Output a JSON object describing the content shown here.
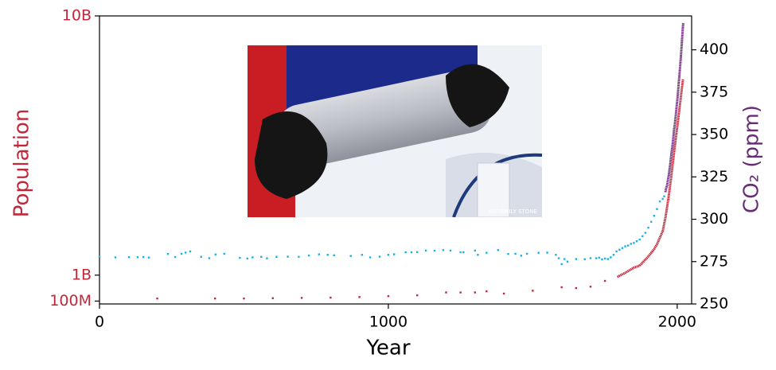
{
  "chart_data": {
    "type": "scatter",
    "x_label": "Year",
    "y_label": "Population",
    "y2_label": "CO₂ (ppm)",
    "inset_credit": "NSF/EMILY STONE",
    "xlim": [
      0,
      2050
    ],
    "xticks": [
      0,
      1000,
      2000
    ],
    "ylim": [
      0,
      10000000000
    ],
    "yticks": [
      {
        "value": 100000000,
        "label": "100M"
      },
      {
        "value": 1000000000,
        "label": "1B"
      },
      {
        "value": 10000000000,
        "label": "10B"
      }
    ],
    "y_color": "#c0283b",
    "y2lim": [
      250,
      420
    ],
    "y2ticks": [
      250,
      275,
      300,
      325,
      350,
      375,
      400
    ],
    "y2_color": "#6b2a78",
    "series": [
      {
        "style": "dots",
        "color": "#c0283b",
        "axis": "y",
        "x": [
          200,
          400,
          500,
          600,
          700,
          800,
          900,
          1000,
          1100,
          1200,
          1250,
          1300,
          1340,
          1400,
          1500,
          1600,
          1650,
          1700,
          1750
        ],
        "values": [
          190000000,
          190000000,
          190000000,
          200000000,
          210000000,
          220000000,
          240000000,
          270000000,
          300000000,
          400000000,
          400000000,
          400000000,
          440000000,
          360000000,
          460000000,
          580000000,
          550000000,
          600000000,
          800000000
        ]
      },
      {
        "style": "line",
        "color": "#c0283b",
        "axis": "y",
        "x": [
          1793,
          1820,
          1850,
          1870,
          1900,
          1920,
          1930,
          1940,
          1950,
          1960,
          1970,
          1980,
          1990,
          2000,
          2010,
          2020
        ],
        "values": [
          940000000,
          1080000000,
          1260000000,
          1330000000,
          1650000000,
          1900000000,
          2070000000,
          2300000000,
          2530000000,
          3030000000,
          3700000000,
          4460000000,
          5330000000,
          6140000000,
          6960000000,
          7800000000
        ]
      },
      {
        "style": "dots",
        "color": "#1ab0e8",
        "axis": "y2",
        "x": [
          0,
          55,
          102,
          132,
          152,
          171,
          237,
          262,
          284,
          298,
          314,
          352,
          380,
          402,
          432,
          486,
          512,
          530,
          560,
          580,
          613,
          652,
          690,
          725,
          760,
          790,
          812,
          870,
          909,
          937,
          970,
          1000,
          1020,
          1060,
          1080,
          1100,
          1130,
          1160,
          1190,
          1215,
          1250,
          1260,
          1300,
          1310,
          1340,
          1380,
          1415,
          1440,
          1460,
          1480,
          1520,
          1550,
          1580,
          1590,
          1600,
          1610,
          1620,
          1650,
          1680,
          1700,
          1720,
          1730,
          1740,
          1750,
          1760,
          1770,
          1780,
          1790,
          1800,
          1810,
          1820,
          1830,
          1840,
          1850,
          1860,
          1870,
          1880,
          1890,
          1900,
          1910,
          1920,
          1930,
          1940,
          1950,
          1955
        ],
        "values": [
          278,
          277.5,
          277.6,
          277.6,
          277.7,
          277.4,
          279.5,
          277.7,
          279.6,
          280.3,
          281,
          277.8,
          277,
          279.2,
          279.6,
          277.2,
          276.8,
          277.5,
          277.8,
          276.9,
          277.8,
          277.9,
          277.8,
          278.6,
          279.3,
          279,
          278.7,
          278.3,
          279,
          277.5,
          277.9,
          279,
          279.3,
          280.5,
          280.5,
          280.6,
          281.5,
          281.4,
          281.8,
          281.5,
          280.5,
          280.5,
          281.5,
          279,
          280.2,
          281.8,
          279.5,
          279.6,
          278.5,
          279.6,
          280.2,
          280.3,
          279,
          277,
          273.5,
          276.5,
          275,
          276.5,
          276.4,
          277,
          277,
          277.3,
          276.3,
          276.8,
          276.5,
          277.5,
          279,
          281,
          282,
          283,
          284,
          284.5,
          285.5,
          286,
          287,
          288,
          290,
          292,
          295,
          298.5,
          302,
          306,
          310.5,
          312,
          313.5
        ]
      },
      {
        "style": "line",
        "color": "#6b2a78",
        "axis": "y2",
        "x": [
          1959,
          1962,
          1965,
          1968,
          1971,
          1974,
          1977,
          1980,
          1983,
          1986,
          1989,
          1992,
          1995,
          1998,
          2001,
          2004,
          2007,
          2010,
          2013,
          2016,
          2019,
          2021
        ],
        "values": [
          316,
          318.5,
          320,
          323,
          326,
          330,
          334,
          338.7,
          342.6,
          347,
          353,
          356.3,
          360.8,
          366.5,
          371,
          377.5,
          383.8,
          389.9,
          396.5,
          404.2,
          411.4,
          416
        ]
      }
    ]
  }
}
